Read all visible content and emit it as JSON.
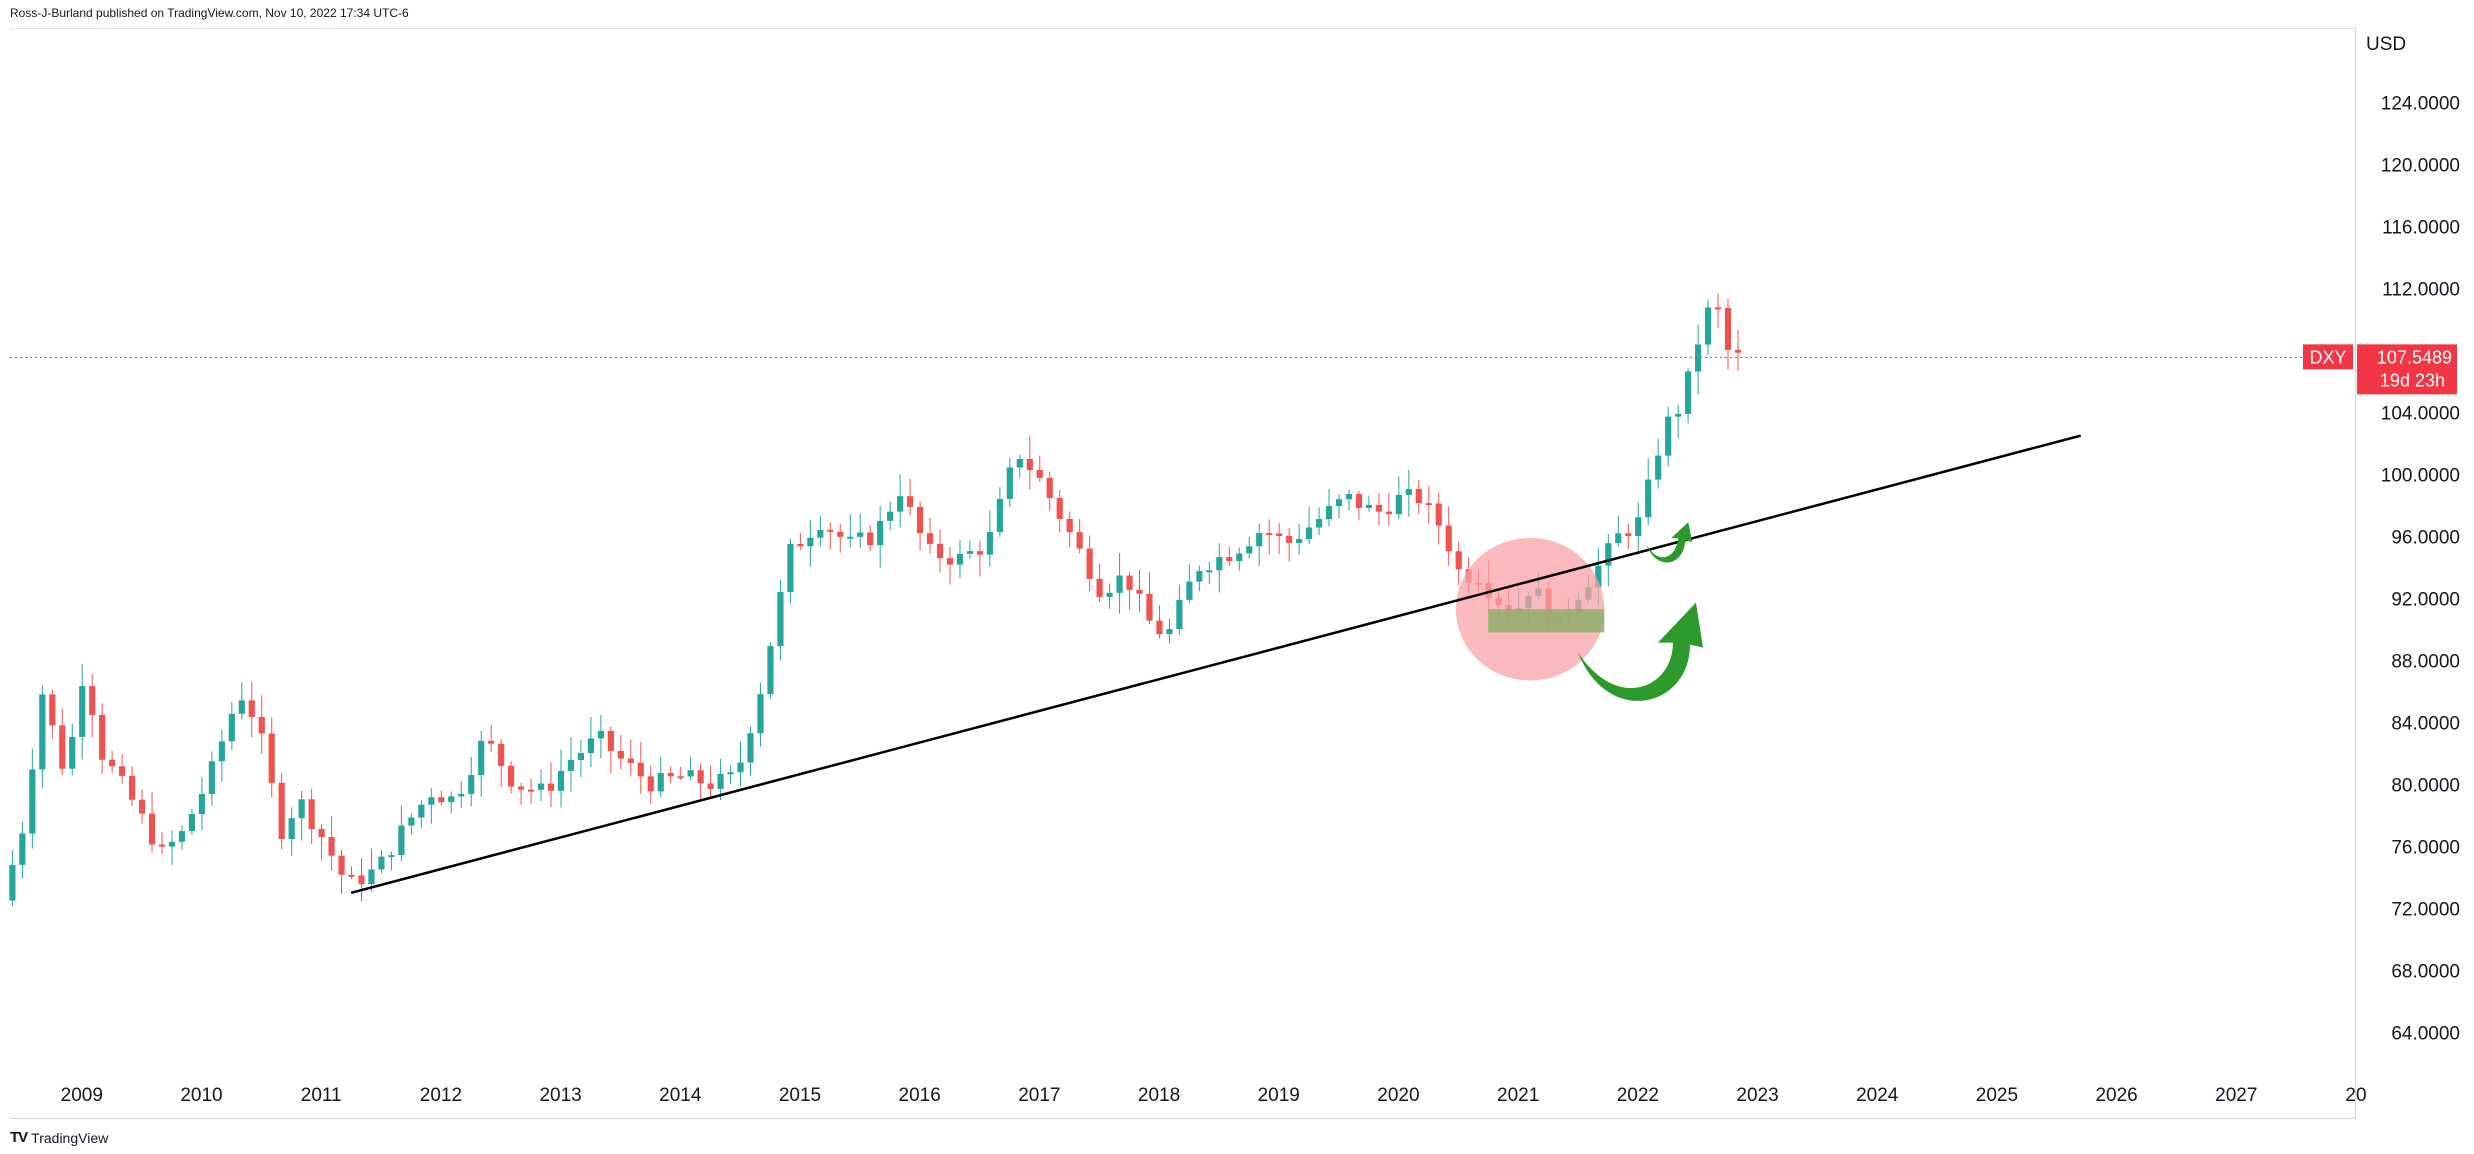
{
  "header": {
    "attribution": "Ross-J-Burland published on TradingView.com, Nov 10, 2022 17:34 UTC-6"
  },
  "footer": {
    "logo_text": "TV",
    "brand": "TradingView"
  },
  "colors": {
    "up": "#26a69a",
    "down": "#ef5350",
    "last_price": "#f23645",
    "trendline": "#000000",
    "circle": "#f7a1a7",
    "box": "#8fae6b",
    "arrow": "#2b9a2b"
  },
  "chart_data": {
    "type": "candlestick",
    "symbol": "DXY",
    "currency": "USD",
    "interval": "1M",
    "last_price": "107.5489",
    "countdown": "19d 23h",
    "x_labels": [
      "2009",
      "2010",
      "2011",
      "2012",
      "2013",
      "2014",
      "2015",
      "2016",
      "2017",
      "2018",
      "2019",
      "2020",
      "2021",
      "2022",
      "2023",
      "2024",
      "2025",
      "2026",
      "2027",
      "20"
    ],
    "x_range": [
      2008.4,
      2028.0
    ],
    "y_ticks": [
      "124.0000",
      "120.0000",
      "116.0000",
      "112.0000",
      "104.0000",
      "100.0000",
      "96.0000",
      "92.0000",
      "88.0000",
      "84.0000",
      "80.0000",
      "76.0000",
      "72.0000",
      "68.0000",
      "64.0000"
    ],
    "ylim": [
      60.6,
      128.8
    ],
    "anchors": [
      [
        2008.42,
        72.5
      ],
      [
        2008.6,
        77.5
      ],
      [
        2008.75,
        86.0
      ],
      [
        2008.95,
        80.5
      ],
      [
        2009.1,
        87.5
      ],
      [
        2009.25,
        82.0
      ],
      [
        2009.5,
        79.0
      ],
      [
        2009.75,
        75.5
      ],
      [
        2009.92,
        76.8
      ],
      [
        2010.15,
        80.5
      ],
      [
        2010.4,
        86.0
      ],
      [
        2010.55,
        84.0
      ],
      [
        2010.75,
        77.0
      ],
      [
        2010.9,
        79.0
      ],
      [
        2011.1,
        76.5
      ],
      [
        2011.3,
        73.5
      ],
      [
        2011.55,
        74.5
      ],
      [
        2011.8,
        77.5
      ],
      [
        2012.0,
        79.5
      ],
      [
        2012.2,
        79.0
      ],
      [
        2012.45,
        83.0
      ],
      [
        2012.7,
        80.0
      ],
      [
        2012.95,
        79.5
      ],
      [
        2013.15,
        81.5
      ],
      [
        2013.4,
        83.0
      ],
      [
        2013.6,
        81.5
      ],
      [
        2013.85,
        80.0
      ],
      [
        2014.1,
        80.5
      ],
      [
        2014.35,
        80.0
      ],
      [
        2014.55,
        80.5
      ],
      [
        2014.75,
        86.0
      ],
      [
        2015.0,
        95.0
      ],
      [
        2015.25,
        97.0
      ],
      [
        2015.5,
        95.5
      ],
      [
        2015.7,
        96.0
      ],
      [
        2015.92,
        99.0
      ],
      [
        2016.15,
        95.0
      ],
      [
        2016.4,
        94.5
      ],
      [
        2016.65,
        95.5
      ],
      [
        2016.9,
        101.5
      ],
      [
        2017.1,
        99.5
      ],
      [
        2017.35,
        96.0
      ],
      [
        2017.6,
        92.5
      ],
      [
        2017.8,
        93.5
      ],
      [
        2018.0,
        90.5
      ],
      [
        2018.15,
        89.5
      ],
      [
        2018.4,
        94.0
      ],
      [
        2018.7,
        95.0
      ],
      [
        2018.95,
        96.5
      ],
      [
        2019.15,
        95.5
      ],
      [
        2019.4,
        97.0
      ],
      [
        2019.65,
        98.5
      ],
      [
        2019.9,
        97.5
      ],
      [
        2020.1,
        98.5
      ],
      [
        2020.25,
        98.5
      ],
      [
        2020.45,
        96.5
      ],
      [
        2020.6,
        93.5
      ],
      [
        2020.75,
        93.5
      ],
      [
        2020.9,
        92.0
      ],
      [
        2021.05,
        91.0
      ],
      [
        2021.2,
        93.0
      ],
      [
        2021.4,
        90.0
      ],
      [
        2021.55,
        92.0
      ],
      [
        2021.75,
        94.0
      ],
      [
        2021.92,
        96.0
      ],
      [
        2022.1,
        97.0
      ],
      [
        2022.3,
        103.0
      ],
      [
        2022.45,
        104.5
      ],
      [
        2022.6,
        109.0
      ],
      [
        2022.72,
        111.5
      ],
      [
        2022.85,
        107.55
      ]
    ],
    "annotations": {
      "trendline": {
        "from": [
          2011.25,
          73.0
        ],
        "to": [
          2025.7,
          102.5
        ]
      },
      "circle": {
        "center": [
          2021.1,
          91.3
        ],
        "rx": 0.62,
        "ry": 4.6
      },
      "box": {
        "x1": 2020.75,
        "x2": 2021.72,
        "y1": 89.8,
        "y2": 91.3
      }
    }
  }
}
